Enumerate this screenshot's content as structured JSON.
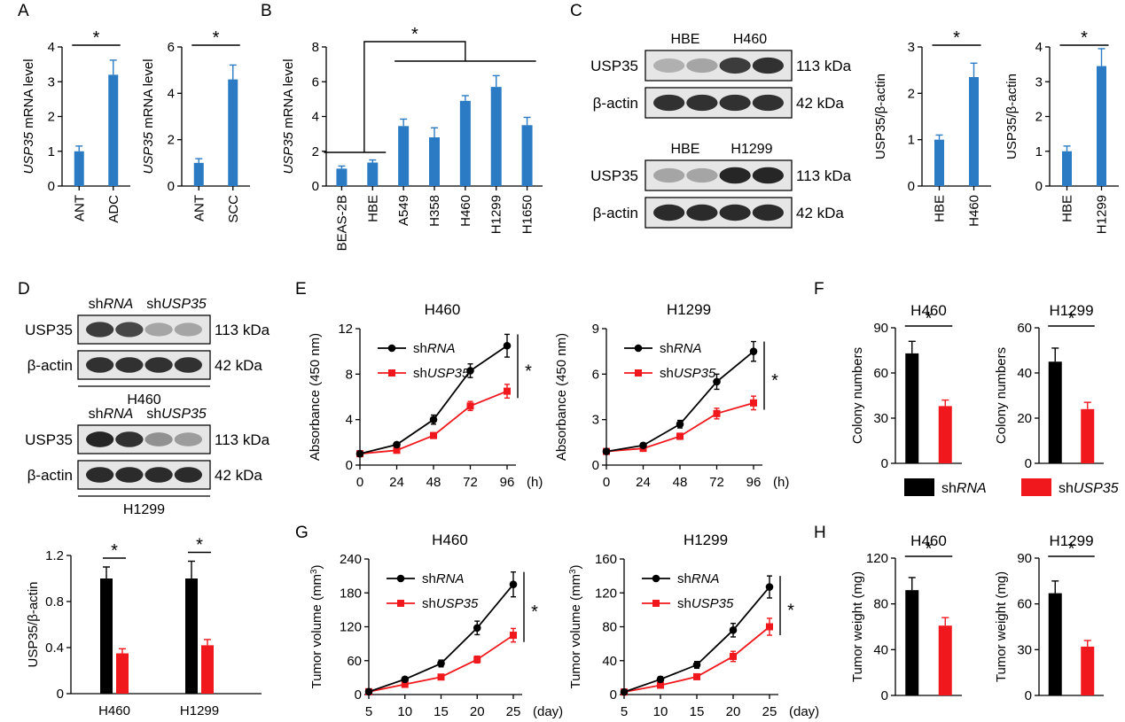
{
  "panel_labels": [
    "A",
    "B",
    "C",
    "D",
    "E",
    "F",
    "G",
    "H"
  ],
  "colors": {
    "blue": "#2a7bc4",
    "black": "#000000",
    "red": "#f0181c"
  },
  "legend": {
    "shrna_prefix": "sh",
    "shrna_italic": "RNA",
    "shusp_prefix": "sh",
    "shusp_italic": "USP35"
  },
  "blots": {
    "C1": {
      "samples": [
        "HBE",
        "H460"
      ],
      "rows": [
        "USP35",
        "β-actin"
      ],
      "kda": [
        "113 kDa",
        "42 kDa"
      ]
    },
    "C2": {
      "samples": [
        "HBE",
        "H1299"
      ],
      "rows": [
        "USP35",
        "β-actin"
      ],
      "kda": [
        "113 kDa",
        "42 kDa"
      ]
    },
    "D1": {
      "samples": [
        "shRNA",
        "shUSP35"
      ],
      "rows": [
        "USP35",
        "β-actin"
      ],
      "kda": [
        "113 kDa",
        "42 kDa"
      ],
      "cell": "H460"
    },
    "D2": {
      "samples": [
        "shRNA",
        "shUSP35"
      ],
      "rows": [
        "USP35",
        "β-actin"
      ],
      "kda": [
        "113 kDa",
        "42 kDa"
      ],
      "cell": "H1299"
    }
  },
  "chart_data": [
    {
      "id": "A1",
      "type": "bar",
      "ylabel_italic": "USP35",
      "ylabel_rest": " mRNA level",
      "categories": [
        "ANT",
        "ADC"
      ],
      "values": [
        1.0,
        3.2
      ],
      "errors": [
        0.15,
        0.42
      ],
      "ylim": [
        0,
        4
      ],
      "yticks": [
        "0",
        "1",
        "2",
        "3",
        "4"
      ],
      "annotation": "*"
    },
    {
      "id": "A2",
      "type": "bar",
      "ylabel_italic": "USP35",
      "ylabel_rest": " mRNA level",
      "categories": [
        "ANT",
        "SCC"
      ],
      "values": [
        1.0,
        4.6
      ],
      "errors": [
        0.18,
        0.62
      ],
      "ylim": [
        0,
        6
      ],
      "yticks": [
        "0",
        "2",
        "4",
        "6"
      ],
      "annotation": "*"
    },
    {
      "id": "B",
      "type": "bar",
      "ylabel_italic": "USP35",
      "ylabel_rest": " mRNA level",
      "categories": [
        "BEAS-2B",
        "HBE",
        "A549",
        "H358",
        "H460",
        "H1299",
        "H1650"
      ],
      "values": [
        1.0,
        1.35,
        3.45,
        2.8,
        4.9,
        5.7,
        3.5
      ],
      "errors": [
        0.15,
        0.15,
        0.4,
        0.55,
        0.3,
        0.65,
        0.45
      ],
      "ylim": [
        0,
        8
      ],
      "yticks": [
        "0",
        "2",
        "4",
        "6",
        "8"
      ],
      "annotation": "*"
    },
    {
      "id": "C1",
      "type": "bar",
      "ylabel": "USP35/β-actin",
      "categories": [
        "HBE",
        "H460"
      ],
      "values": [
        1.0,
        2.35
      ],
      "errors": [
        0.1,
        0.3
      ],
      "ylim": [
        0,
        3
      ],
      "yticks": [
        "0",
        "1",
        "2",
        "3"
      ],
      "annotation": "*"
    },
    {
      "id": "C2",
      "type": "bar",
      "ylabel": "USP35/β-actin",
      "categories": [
        "HBE",
        "H1299"
      ],
      "values": [
        1.0,
        3.45
      ],
      "errors": [
        0.15,
        0.5
      ],
      "ylim": [
        0,
        4
      ],
      "yticks": [
        "0",
        "1",
        "2",
        "3",
        "4"
      ],
      "annotation": "*"
    },
    {
      "id": "D",
      "type": "bar",
      "ylabel": "USP35/β-actin",
      "categories": [
        "H460",
        "H1299"
      ],
      "series": [
        {
          "values": [
            1.0,
            1.0
          ],
          "errors": [
            0.1,
            0.15
          ]
        },
        {
          "values": [
            0.35,
            0.42
          ],
          "errors": [
            0.04,
            0.05
          ]
        }
      ],
      "ylim": [
        0,
        1.2
      ],
      "yticks": [
        "0",
        "0.4",
        "0.8",
        "1.2"
      ],
      "annotation": "*"
    },
    {
      "id": "E1",
      "type": "line",
      "title": "H460",
      "ylabel": "Absorbance (450 nm)",
      "x": [
        0,
        24,
        48,
        72,
        96
      ],
      "xunit": "(h)",
      "series": [
        {
          "values": [
            1.0,
            1.8,
            4.0,
            8.3,
            10.5
          ],
          "errors": [
            0.15,
            0.2,
            0.4,
            0.6,
            1.0
          ]
        },
        {
          "values": [
            1.0,
            1.3,
            2.6,
            5.2,
            6.5
          ],
          "errors": [
            0.1,
            0.15,
            0.25,
            0.4,
            0.6
          ]
        }
      ],
      "ylim": [
        0,
        12
      ],
      "yticks": [
        "0",
        "4",
        "8",
        "12"
      ],
      "xticks": [
        "0",
        "24",
        "48",
        "72",
        "96"
      ],
      "annotation": "*"
    },
    {
      "id": "E2",
      "type": "line",
      "title": "H1299",
      "ylabel": "Absorbance (450 nm)",
      "x": [
        0,
        24,
        48,
        72,
        96
      ],
      "xunit": "(h)",
      "series": [
        {
          "values": [
            0.9,
            1.3,
            2.7,
            5.5,
            7.5
          ],
          "errors": [
            0.1,
            0.15,
            0.25,
            0.5,
            0.65
          ]
        },
        {
          "values": [
            0.9,
            1.1,
            1.9,
            3.4,
            4.1
          ],
          "errors": [
            0.1,
            0.12,
            0.2,
            0.35,
            0.45
          ]
        }
      ],
      "ylim": [
        0,
        9
      ],
      "yticks": [
        "0",
        "3",
        "6",
        "9"
      ],
      "xticks": [
        "0",
        "24",
        "48",
        "72",
        "96"
      ],
      "annotation": "*"
    },
    {
      "id": "F1",
      "type": "bar",
      "title": "H460",
      "ylabel": "Colony numbers",
      "values": [
        73,
        38
      ],
      "errors": [
        8,
        4
      ],
      "ylim": [
        0,
        90
      ],
      "yticks": [
        "0",
        "30",
        "60",
        "90"
      ],
      "annotation": "*"
    },
    {
      "id": "F2",
      "type": "bar",
      "title": "H1299",
      "ylabel": "Colony numbers",
      "values": [
        45,
        24
      ],
      "errors": [
        6,
        3
      ],
      "ylim": [
        0,
        60
      ],
      "yticks": [
        "0",
        "20",
        "40",
        "60"
      ],
      "annotation": "*"
    },
    {
      "id": "G1",
      "type": "line",
      "title": "H460",
      "ylabel_pre": "Tumor volume (mm",
      "ylabel_sup": "3",
      "ylabel_post": ")",
      "x": [
        5,
        10,
        15,
        20,
        25
      ],
      "xunit": "(day)",
      "series": [
        {
          "values": [
            5,
            27,
            55,
            118,
            195
          ],
          "errors": [
            2,
            4,
            6,
            12,
            22
          ]
        },
        {
          "values": [
            5,
            18,
            31,
            62,
            105
          ],
          "errors": [
            2,
            3,
            4,
            6,
            12
          ]
        }
      ],
      "ylim": [
        0,
        240
      ],
      "yticks": [
        "0",
        "60",
        "120",
        "180",
        "240"
      ],
      "xticks": [
        "5",
        "10",
        "15",
        "20",
        "25"
      ],
      "annotation": "*"
    },
    {
      "id": "G2",
      "type": "line",
      "title": "H1299",
      "ylabel_pre": "Tumor volume (mm",
      "ylabel_sup": "3",
      "ylabel_post": ")",
      "x": [
        5,
        10,
        15,
        20,
        25
      ],
      "xunit": "(day)",
      "series": [
        {
          "values": [
            3,
            18,
            35,
            76,
            127
          ],
          "errors": [
            2,
            3,
            4,
            8,
            13
          ]
        },
        {
          "values": [
            3,
            11,
            21,
            45,
            80
          ],
          "errors": [
            2,
            2,
            3,
            6,
            10
          ]
        }
      ],
      "ylim": [
        0,
        160
      ],
      "yticks": [
        "0",
        "40",
        "80",
        "120",
        "160"
      ],
      "xticks": [
        "5",
        "10",
        "15",
        "20",
        "25"
      ],
      "annotation": "*"
    },
    {
      "id": "H1",
      "type": "bar",
      "title": "H460",
      "ylabel": "Tumor weight (mg)",
      "values": [
        92,
        61
      ],
      "errors": [
        11,
        7
      ],
      "ylim": [
        0,
        120
      ],
      "yticks": [
        "0",
        "40",
        "80",
        "120"
      ],
      "annotation": "*"
    },
    {
      "id": "H2",
      "type": "bar",
      "title": "H1299",
      "ylabel": "Tumor weight (mg)",
      "values": [
        67,
        32
      ],
      "errors": [
        8,
        4
      ],
      "ylim": [
        0,
        90
      ],
      "yticks": [
        "0",
        "30",
        "60",
        "90"
      ],
      "annotation": "*"
    }
  ]
}
